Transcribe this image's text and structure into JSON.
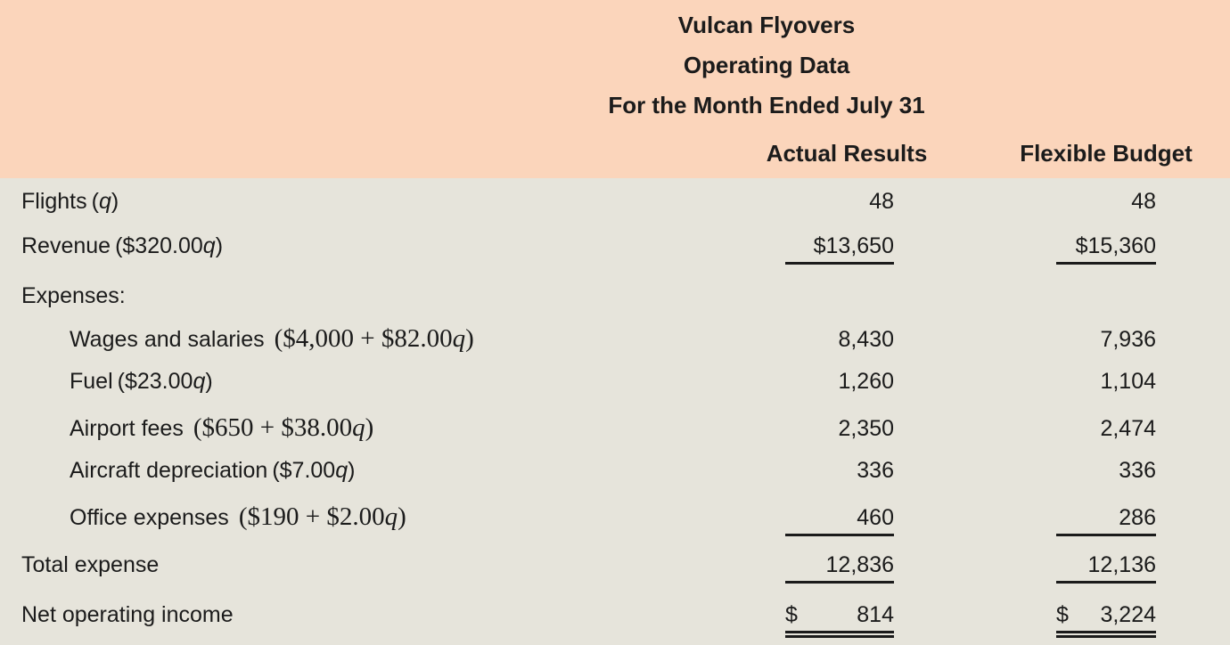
{
  "sheet": {
    "title_lines": [
      "Vulcan Flyovers",
      "Operating Data",
      "For the Month Ended July 31"
    ],
    "columns": [
      "Actual Results",
      "Flexible Budget"
    ],
    "variable": "q",
    "rows": [
      {
        "label": "Flights",
        "formula": "(q)",
        "formula_style": "sans",
        "indent": false,
        "actual": "48",
        "flexible": "48",
        "rule": "none"
      },
      {
        "label": "Revenue",
        "formula": "($320.00q)",
        "formula_style": "sans",
        "indent": false,
        "actual": "$13,650",
        "flexible": "$15,360",
        "rule": "single"
      },
      {
        "label": "Expenses:",
        "formula": "",
        "formula_style": "sans",
        "indent": false,
        "actual": "",
        "flexible": "",
        "rule": "none"
      },
      {
        "label": "Wages and salaries",
        "formula": "($4,000 + $82.00q)",
        "formula_style": "serif",
        "indent": true,
        "actual": "8,430",
        "flexible": "7,936",
        "rule": "none"
      },
      {
        "label": "Fuel",
        "formula": "($23.00q)",
        "formula_style": "sans",
        "indent": true,
        "actual": "1,260",
        "flexible": "1,104",
        "rule": "none"
      },
      {
        "label": "Airport fees",
        "formula": "($650 + $38.00q)",
        "formula_style": "serif",
        "indent": true,
        "actual": "2,350",
        "flexible": "2,474",
        "rule": "none"
      },
      {
        "label": "Aircraft depreciation",
        "formula": "($7.00q)",
        "formula_style": "sans",
        "indent": true,
        "actual": "336",
        "flexible": "336",
        "rule": "none"
      },
      {
        "label": "Office expenses",
        "formula": "($190 + $2.00q)",
        "formula_style": "serif",
        "indent": true,
        "actual": "460",
        "flexible": "286",
        "rule": "single"
      },
      {
        "label": "Total expense",
        "formula": "",
        "formula_style": "sans",
        "indent": false,
        "actual": "12,836",
        "flexible": "12,136",
        "rule": "single"
      },
      {
        "label": "Net operating income",
        "formula": "",
        "formula_style": "sans",
        "indent": false,
        "currency_prefix": "$",
        "actual": "814",
        "flexible": "3,224",
        "rule": "double"
      }
    ]
  },
  "colors": {
    "header_bg": "#fbd5bb",
    "body_bg": "#e6e4db",
    "text": "#1b1b1b",
    "rule": "#1b1b1b"
  }
}
